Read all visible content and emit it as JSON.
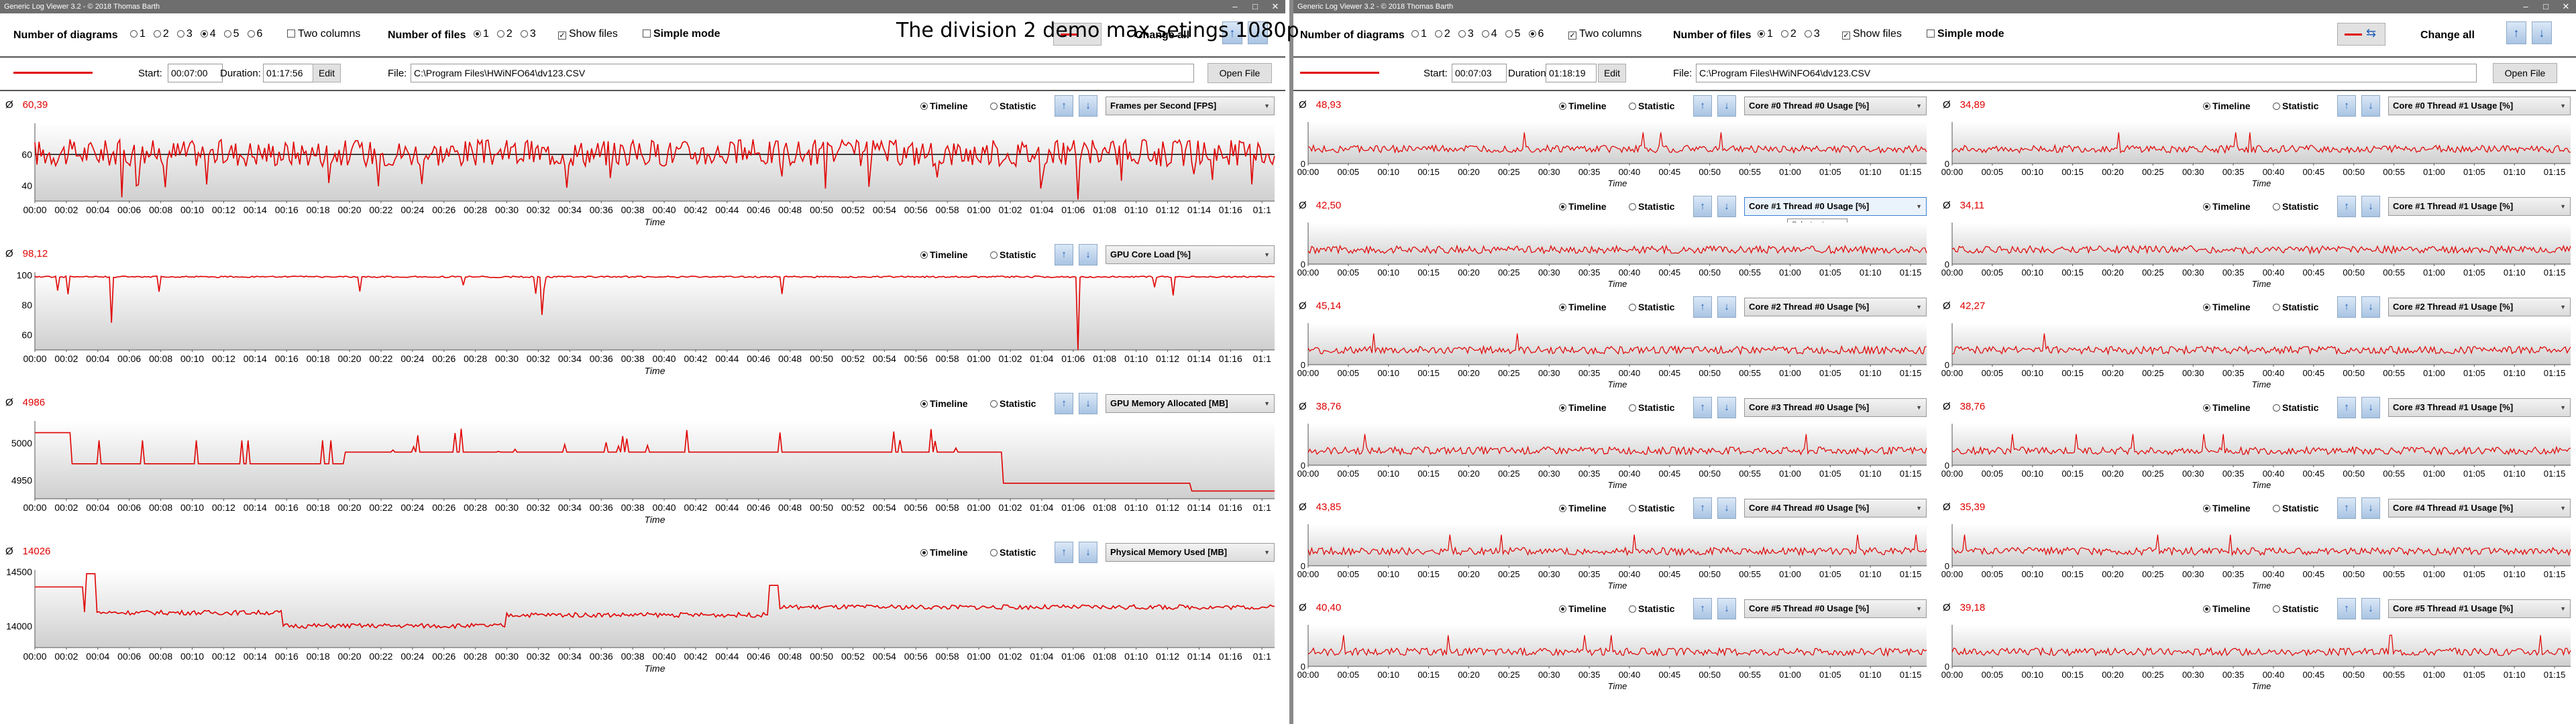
{
  "overlay_title": "The division 2 demo max setings  1080p",
  "left": {
    "title": "Generic Log Viewer 3.2 - © 2018 Thomas Barth",
    "num_diagrams_label": "Number of diagrams",
    "diagram_options": [
      "1",
      "2",
      "3",
      "4",
      "5",
      "6"
    ],
    "diagram_selected": "4",
    "two_columns_label": "Two columns",
    "two_columns_checked": false,
    "num_files_label": "Number of files",
    "file_options": [
      "1",
      "2",
      "3"
    ],
    "file_selected": "1",
    "show_files_label": "Show files",
    "show_files_checked": true,
    "simple_mode_label": "Simple mode",
    "simple_mode_checked": false,
    "change_all_label": "Change all",
    "start_label": "Start:",
    "start_value": "00:07:00",
    "duration_label": "Duration:",
    "duration_value": "01:17:56",
    "edit_label": "Edit",
    "file_label": "File:",
    "file_path": "C:\\Program Files\\HWiNFO64\\dv123.CSV",
    "open_file_label": "Open File"
  },
  "right": {
    "title": "Generic Log Viewer 3.2 - © 2018 Thomas Barth",
    "num_diagrams_label": "Number of diagrams",
    "diagram_options": [
      "1",
      "2",
      "3",
      "4",
      "5",
      "6"
    ],
    "diagram_selected": "6",
    "two_columns_label": "Two columns",
    "two_columns_checked": true,
    "num_files_label": "Number of files",
    "file_options": [
      "1",
      "2",
      "3"
    ],
    "file_selected": "1",
    "show_files_label": "Show files",
    "show_files_checked": true,
    "simple_mode_label": "Simple mode",
    "simple_mode_checked": false,
    "change_all_label": "Change all",
    "start_label": "Start:",
    "start_value": "00:07:03",
    "duration_label": "Duration:",
    "duration_value": "01:18:19",
    "edit_label": "Edit",
    "file_label": "File:",
    "file_path": "C:\\Program Files\\HWiNFO64\\dv123.CSV",
    "open_file_label": "Open File"
  },
  "common": {
    "avg_symbol": "Ø",
    "timeline_label": "Timeline",
    "statistic_label": "Statistic",
    "time_axis_label": "Time",
    "tooltip": "Select category",
    "line_color": "#e00000"
  },
  "chart_data": [
    {
      "type": "line",
      "panel": "left-1",
      "series": [
        {
          "name": "Frames per Second [FPS]"
        }
      ],
      "average": "60,39",
      "ylim": [
        30,
        80
      ],
      "yticks": [
        "40",
        "60"
      ],
      "xticks": [
        "00:00",
        "00:02",
        "00:04",
        "00:06",
        "00:08",
        "00:10",
        "00:12",
        "00:14",
        "00:16",
        "00:18",
        "00:20",
        "00:22",
        "00:24",
        "00:26",
        "00:28",
        "00:30",
        "00:32",
        "00:34",
        "00:36",
        "00:38",
        "00:40",
        "00:42",
        "00:44",
        "00:46",
        "00:48",
        "00:50",
        "00:52",
        "00:54",
        "00:56",
        "00:58",
        "01:00",
        "01:02",
        "01:04",
        "01:06",
        "01:08",
        "01:10",
        "01:12",
        "01:14",
        "01:16",
        "01:1"
      ],
      "xlabel": "Time"
    },
    {
      "type": "line",
      "panel": "left-2",
      "series": [
        {
          "name": "GPU Core Load [%]"
        }
      ],
      "average": "98,12",
      "ylim": [
        50,
        102
      ],
      "yticks": [
        "100",
        "80",
        "60"
      ],
      "xticks": [
        "00:00",
        "00:02",
        "00:04",
        "00:06",
        "00:08",
        "00:10",
        "00:12",
        "00:14",
        "00:16",
        "00:18",
        "00:20",
        "00:22",
        "00:24",
        "00:26",
        "00:28",
        "00:30",
        "00:32",
        "00:34",
        "00:36",
        "00:38",
        "00:40",
        "00:42",
        "00:44",
        "00:46",
        "00:48",
        "00:50",
        "00:52",
        "00:54",
        "00:56",
        "00:58",
        "01:00",
        "01:02",
        "01:04",
        "01:06",
        "01:08",
        "01:10",
        "01:12",
        "01:14",
        "01:16",
        "01:1"
      ],
      "xlabel": "Time"
    },
    {
      "type": "line",
      "panel": "left-3",
      "series": [
        {
          "name": "GPU Memory Allocated [MB]"
        }
      ],
      "average": "4986",
      "ylim": [
        4925,
        5030
      ],
      "yticks": [
        "5000",
        "4950"
      ],
      "xticks": [
        "00:00",
        "00:02",
        "00:04",
        "00:06",
        "00:08",
        "00:10",
        "00:12",
        "00:14",
        "00:16",
        "00:18",
        "00:20",
        "00:22",
        "00:24",
        "00:26",
        "00:28",
        "00:30",
        "00:32",
        "00:34",
        "00:36",
        "00:38",
        "00:40",
        "00:42",
        "00:44",
        "00:46",
        "00:48",
        "00:50",
        "00:52",
        "00:54",
        "00:56",
        "00:58",
        "01:00",
        "01:02",
        "01:04",
        "01:06",
        "01:08",
        "01:10",
        "01:12",
        "01:14",
        "01:16",
        "01:1"
      ],
      "xlabel": "Time"
    },
    {
      "type": "line",
      "panel": "left-4",
      "series": [
        {
          "name": "Physical Memory Used [MB]"
        }
      ],
      "average": "14026",
      "ylim": [
        13800,
        14520
      ],
      "yticks": [
        "14500",
        "14000"
      ],
      "xticks": [
        "00:00",
        "00:02",
        "00:04",
        "00:06",
        "00:08",
        "00:10",
        "00:12",
        "00:14",
        "00:16",
        "00:18",
        "00:20",
        "00:22",
        "00:24",
        "00:26",
        "00:28",
        "00:30",
        "00:32",
        "00:34",
        "00:36",
        "00:38",
        "00:40",
        "00:42",
        "00:44",
        "00:46",
        "00:48",
        "00:50",
        "00:52",
        "00:54",
        "00:56",
        "00:58",
        "01:00",
        "01:02",
        "01:04",
        "01:06",
        "01:08",
        "01:10",
        "01:12",
        "01:14",
        "01:16",
        "01:1"
      ],
      "xlabel": "Time"
    },
    {
      "type": "line",
      "panel": "right-1",
      "series": [
        {
          "name": "Core #0 Thread #0 Usage [%]"
        }
      ],
      "average": "48,93",
      "ylim": [
        0,
        100
      ],
      "yticks": [
        "0"
      ],
      "xticks": [
        "00:00",
        "00:05",
        "00:10",
        "00:15",
        "00:20",
        "00:25",
        "00:30",
        "00:35",
        "00:40",
        "00:45",
        "00:50",
        "00:55",
        "01:00",
        "01:05",
        "01:10",
        "01:15"
      ],
      "xlabel": "Time"
    },
    {
      "type": "line",
      "panel": "right-2",
      "series": [
        {
          "name": "Core #0 Thread #1 Usage [%]"
        }
      ],
      "average": "34,89",
      "ylim": [
        0,
        100
      ],
      "yticks": [
        "0"
      ],
      "xticks": [
        "00:00",
        "00:05",
        "00:10",
        "00:15",
        "00:20",
        "00:25",
        "00:30",
        "00:35",
        "00:40",
        "00:45",
        "00:50",
        "00:55",
        "01:00",
        "01:05",
        "01:10",
        "01:15"
      ],
      "xlabel": "Time"
    },
    {
      "type": "line",
      "panel": "right-3",
      "series": [
        {
          "name": "Core #1 Thread #0 Usage [%]"
        }
      ],
      "average": "42,50",
      "ylim": [
        0,
        100
      ],
      "yticks": [
        "0"
      ],
      "xticks": [
        "00:00",
        "00:05",
        "00:10",
        "00:15",
        "00:20",
        "00:25",
        "00:30",
        "00:35",
        "00:40",
        "00:45",
        "00:50",
        "00:55",
        "01:00",
        "01:05",
        "01:10",
        "01:15"
      ],
      "xlabel": "Time"
    },
    {
      "type": "line",
      "panel": "right-4",
      "series": [
        {
          "name": "Core #1 Thread #1 Usage [%]"
        }
      ],
      "average": "34,11",
      "ylim": [
        0,
        100
      ],
      "yticks": [
        "0"
      ],
      "xticks": [
        "00:00",
        "00:05",
        "00:10",
        "00:15",
        "00:20",
        "00:25",
        "00:30",
        "00:35",
        "00:40",
        "00:45",
        "00:50",
        "00:55",
        "01:00",
        "01:05",
        "01:10",
        "01:15"
      ],
      "xlabel": "Time"
    },
    {
      "type": "line",
      "panel": "right-5",
      "series": [
        {
          "name": "Core #2 Thread #0 Usage [%]"
        }
      ],
      "average": "45,14",
      "ylim": [
        0,
        100
      ],
      "yticks": [
        "0"
      ],
      "xticks": [
        "00:00",
        "00:05",
        "00:10",
        "00:15",
        "00:20",
        "00:25",
        "00:30",
        "00:35",
        "00:40",
        "00:45",
        "00:50",
        "00:55",
        "01:00",
        "01:05",
        "01:10",
        "01:15"
      ],
      "xlabel": "Time"
    },
    {
      "type": "line",
      "panel": "right-6",
      "series": [
        {
          "name": "Core #2 Thread #1 Usage [%]"
        }
      ],
      "average": "42,27",
      "ylim": [
        0,
        100
      ],
      "yticks": [
        "0"
      ],
      "xticks": [
        "00:00",
        "00:05",
        "00:10",
        "00:15",
        "00:20",
        "00:25",
        "00:30",
        "00:35",
        "00:40",
        "00:45",
        "00:50",
        "00:55",
        "01:00",
        "01:05",
        "01:10",
        "01:15"
      ],
      "xlabel": "Time"
    },
    {
      "type": "line",
      "panel": "right-7",
      "series": [
        {
          "name": "Core #3 Thread #0 Usage [%]"
        }
      ],
      "average": "38,76",
      "ylim": [
        0,
        100
      ],
      "yticks": [
        "0"
      ],
      "xticks": [
        "00:00",
        "00:05",
        "00:10",
        "00:15",
        "00:20",
        "00:25",
        "00:30",
        "00:35",
        "00:40",
        "00:45",
        "00:50",
        "00:55",
        "01:00",
        "01:05",
        "01:10",
        "01:15"
      ],
      "xlabel": "Time"
    },
    {
      "type": "line",
      "panel": "right-8",
      "series": [
        {
          "name": "Core #3 Thread #1 Usage [%]"
        }
      ],
      "average": "38,76",
      "ylim": [
        0,
        100
      ],
      "yticks": [
        "0"
      ],
      "xticks": [
        "00:00",
        "00:05",
        "00:10",
        "00:15",
        "00:20",
        "00:25",
        "00:30",
        "00:35",
        "00:40",
        "00:45",
        "00:50",
        "00:55",
        "01:00",
        "01:05",
        "01:10",
        "01:15"
      ],
      "xlabel": "Time"
    },
    {
      "type": "line",
      "panel": "right-9",
      "series": [
        {
          "name": "Core #4 Thread #0 Usage [%]"
        }
      ],
      "average": "43,85",
      "ylim": [
        0,
        100
      ],
      "yticks": [
        "0"
      ],
      "xticks": [
        "00:00",
        "00:05",
        "00:10",
        "00:15",
        "00:20",
        "00:25",
        "00:30",
        "00:35",
        "00:40",
        "00:45",
        "00:50",
        "00:55",
        "01:00",
        "01:05",
        "01:10",
        "01:15"
      ],
      "xlabel": "Time"
    },
    {
      "type": "line",
      "panel": "right-10",
      "series": [
        {
          "name": "Core #4 Thread #1 Usage [%]"
        }
      ],
      "average": "35,39",
      "ylim": [
        0,
        100
      ],
      "yticks": [
        "0"
      ],
      "xticks": [
        "00:00",
        "00:05",
        "00:10",
        "00:15",
        "00:20",
        "00:25",
        "00:30",
        "00:35",
        "00:40",
        "00:45",
        "00:50",
        "00:55",
        "01:00",
        "01:05",
        "01:10",
        "01:15"
      ],
      "xlabel": "Time"
    },
    {
      "type": "line",
      "panel": "right-11",
      "series": [
        {
          "name": "Core #5 Thread #0 Usage [%]"
        }
      ],
      "average": "40,40",
      "ylim": [
        0,
        100
      ],
      "yticks": [
        "0"
      ],
      "xticks": [
        "00:00",
        "00:05",
        "00:10",
        "00:15",
        "00:20",
        "00:25",
        "00:30",
        "00:35",
        "00:40",
        "00:45",
        "00:50",
        "00:55",
        "01:00",
        "01:05",
        "01:10",
        "01:15"
      ],
      "xlabel": "Time"
    },
    {
      "type": "line",
      "panel": "right-12",
      "series": [
        {
          "name": "Core #5 Thread #1 Usage [%]"
        }
      ],
      "average": "39,18",
      "ylim": [
        0,
        100
      ],
      "yticks": [
        "0"
      ],
      "xticks": [
        "00:00",
        "00:05",
        "00:10",
        "00:15",
        "00:20",
        "00:25",
        "00:30",
        "00:35",
        "00:40",
        "00:45",
        "00:50",
        "00:55",
        "01:00",
        "01:05",
        "01:10",
        "01:15"
      ],
      "xlabel": "Time"
    }
  ]
}
